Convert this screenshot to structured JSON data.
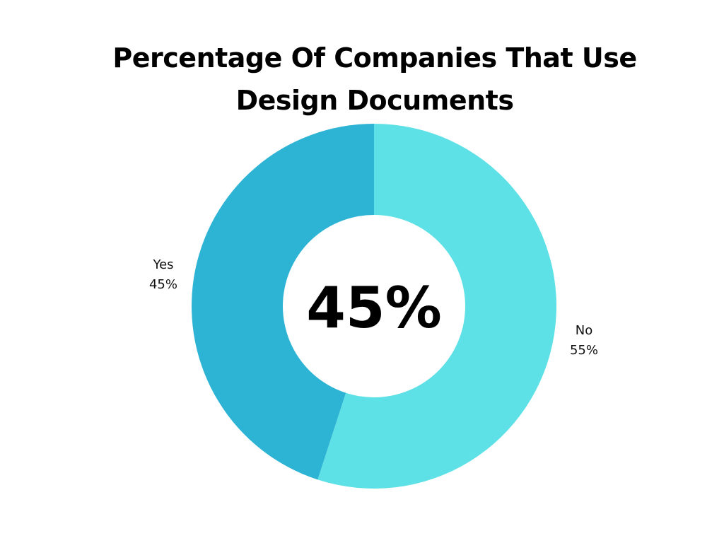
{
  "chart_data": {
    "type": "pie",
    "title_lines": [
      "Percentage Of Companies That Use",
      "Design Documents"
    ],
    "center_label": "45%",
    "slices": [
      {
        "label": "No",
        "value": 55,
        "value_label": "55%",
        "color": "#5ee1e6"
      },
      {
        "label": "Yes",
        "value": 45,
        "value_label": "45%",
        "color": "#2db4d4"
      }
    ]
  }
}
